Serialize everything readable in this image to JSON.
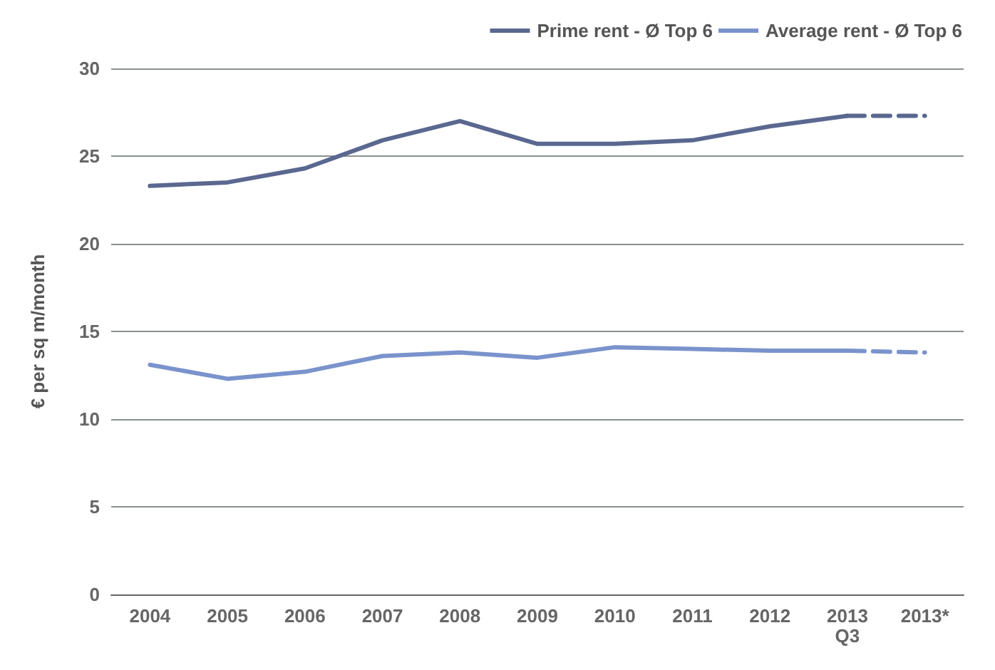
{
  "chart_data": {
    "type": "line",
    "ylabel": "€ per sq m/month",
    "categories": [
      "2004",
      "2005",
      "2006",
      "2007",
      "2008",
      "2009",
      "2010",
      "2011",
      "2012",
      "2013\nQ3",
      "2013*"
    ],
    "series": [
      {
        "name": "Prime rent - Ø Top 6",
        "color": "#5a6890",
        "values": [
          23.3,
          23.5,
          24.3,
          25.9,
          27.0,
          25.7,
          25.7,
          25.9,
          26.7,
          27.3,
          null
        ]
      },
      {
        "name": "Average rent - Ø Top 6",
        "color": "#7a93cc",
        "values": [
          13.1,
          12.3,
          12.7,
          13.6,
          13.8,
          13.5,
          14.1,
          14.0,
          13.9,
          13.9,
          null
        ]
      },
      {
        "color": "#5a6890",
        "line_style": "dashed",
        "values": [
          null,
          null,
          null,
          null,
          null,
          null,
          null,
          null,
          null,
          27.3,
          27.3
        ]
      },
      {
        "color": "#7a93cc",
        "line_style": "dashed",
        "values": [
          null,
          null,
          null,
          null,
          null,
          null,
          null,
          null,
          null,
          13.9,
          13.8
        ]
      }
    ],
    "ylim": [
      0,
      30
    ],
    "yticks": [
      0,
      5,
      10,
      15,
      20,
      25,
      30
    ],
    "grid": "y",
    "legend": "top right",
    "marker": "none"
  }
}
